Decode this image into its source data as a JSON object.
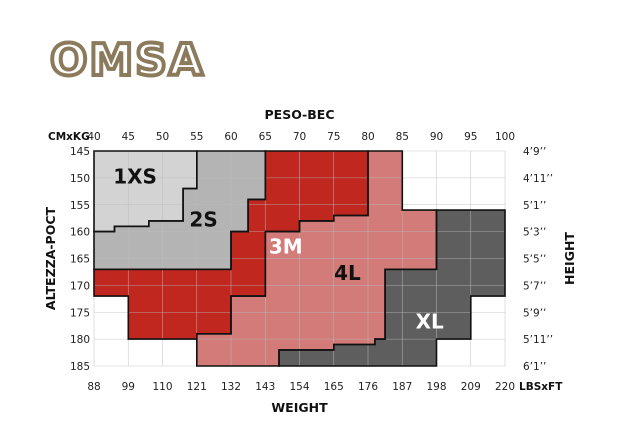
{
  "brand": {
    "logo_text": "OMSA",
    "logo_color": "#8b7b5c"
  },
  "chart_data": {
    "type": "heatmap",
    "x_top_label": "PESO-BEC",
    "x_top_unit": "CMxKG",
    "x_top_ticks": [
      40,
      45,
      50,
      55,
      60,
      65,
      70,
      75,
      80,
      85,
      90,
      95,
      100
    ],
    "x_bottom_label": "WEIGHT",
    "x_bottom_unit": "LBSxFT",
    "x_bottom_ticks": [
      "88",
      "99",
      "110",
      "121",
      "132",
      "143",
      "154",
      "165",
      "176",
      "187",
      "198",
      "209",
      "220"
    ],
    "y_left_label": "ALTEZZA-POCT",
    "y_left_ticks": [
      145,
      150,
      155,
      160,
      165,
      170,
      175,
      180,
      185
    ],
    "y_right_label": "HEIGHT",
    "y_right_ticks": [
      "4’9’’",
      "4’11’’",
      "5’1’’",
      "5’3’’",
      "5’5’’",
      "5’7’’",
      "5’9’’",
      "5’11’’",
      "6’1’’"
    ],
    "xlim_kg": [
      40,
      100
    ],
    "ylim_cm": [
      145,
      185
    ],
    "grid": true,
    "zones": [
      {
        "name": "1XS",
        "color": "#d3d3d3",
        "text_color": "#111111",
        "polygon": [
          [
            40,
            145
          ],
          [
            55,
            145
          ],
          [
            55,
            150
          ],
          [
            55,
            152
          ],
          [
            53,
            152
          ],
          [
            53,
            158
          ],
          [
            48,
            158
          ],
          [
            48,
            159
          ],
          [
            43,
            159
          ],
          [
            43,
            160
          ],
          [
            40,
            160
          ]
        ]
      },
      {
        "name": "2S",
        "color": "#b4b4b4",
        "text_color": "#111111",
        "polygon": [
          [
            55,
            145
          ],
          [
            65,
            145
          ],
          [
            65,
            154
          ],
          [
            62.5,
            154
          ],
          [
            62.5,
            160
          ],
          [
            60,
            160
          ],
          [
            60,
            167
          ],
          [
            40,
            167
          ],
          [
            40,
            160
          ],
          [
            43,
            160
          ],
          [
            43,
            159
          ],
          [
            48,
            159
          ],
          [
            48,
            158
          ],
          [
            53,
            158
          ],
          [
            53,
            152
          ],
          [
            55,
            152
          ]
        ]
      },
      {
        "name": "3M",
        "color": "#c0271f",
        "text_color": "#ffffff",
        "polygon": [
          [
            65,
            145
          ],
          [
            80,
            145
          ],
          [
            80,
            157
          ],
          [
            75,
            157
          ],
          [
            75,
            158
          ],
          [
            70,
            158
          ],
          [
            70,
            160
          ],
          [
            65,
            160
          ],
          [
            65,
            172
          ],
          [
            60,
            172
          ],
          [
            60,
            179
          ],
          [
            55,
            179
          ],
          [
            55,
            180
          ],
          [
            45,
            180
          ],
          [
            45,
            172
          ],
          [
            40,
            172
          ],
          [
            40,
            167
          ],
          [
            60,
            167
          ],
          [
            60,
            160
          ],
          [
            62.5,
            160
          ],
          [
            62.5,
            154
          ],
          [
            65,
            154
          ]
        ]
      },
      {
        "name": "4L",
        "color": "#d27b78",
        "text_color": "#111111",
        "polygon": [
          [
            80,
            145
          ],
          [
            85,
            145
          ],
          [
            85,
            156
          ],
          [
            90,
            156
          ],
          [
            90,
            167
          ],
          [
            82.5,
            167
          ],
          [
            82.5,
            180
          ],
          [
            81,
            180
          ],
          [
            81,
            181
          ],
          [
            75,
            181
          ],
          [
            75,
            182
          ],
          [
            67,
            182
          ],
          [
            67,
            185
          ],
          [
            55,
            185
          ],
          [
            55,
            180
          ],
          [
            55,
            179
          ],
          [
            60,
            179
          ],
          [
            60,
            172
          ],
          [
            65,
            172
          ],
          [
            65,
            160
          ],
          [
            70,
            160
          ],
          [
            70,
            158
          ],
          [
            75,
            158
          ],
          [
            75,
            157
          ],
          [
            80,
            157
          ]
        ]
      },
      {
        "name": "XL",
        "color": "#5e5e5e",
        "text_color": "#ffffff",
        "polygon": [
          [
            90,
            156
          ],
          [
            100,
            156
          ],
          [
            100,
            172
          ],
          [
            95,
            172
          ],
          [
            95,
            180
          ],
          [
            90,
            180
          ],
          [
            90,
            185
          ],
          [
            67,
            185
          ],
          [
            67,
            182
          ],
          [
            75,
            182
          ],
          [
            75,
            181
          ],
          [
            81,
            181
          ],
          [
            81,
            180
          ],
          [
            82.5,
            180
          ],
          [
            82.5,
            167
          ],
          [
            90,
            167
          ]
        ]
      }
    ],
    "zone_labels": [
      {
        "name": "1XS",
        "x": 46,
        "y": 150
      },
      {
        "name": "2S",
        "x": 56,
        "y": 158
      },
      {
        "name": "3M",
        "x": 68,
        "y": 163
      },
      {
        "name": "4L",
        "x": 77,
        "y": 168
      },
      {
        "name": "XL",
        "x": 89,
        "y": 177
      }
    ]
  }
}
